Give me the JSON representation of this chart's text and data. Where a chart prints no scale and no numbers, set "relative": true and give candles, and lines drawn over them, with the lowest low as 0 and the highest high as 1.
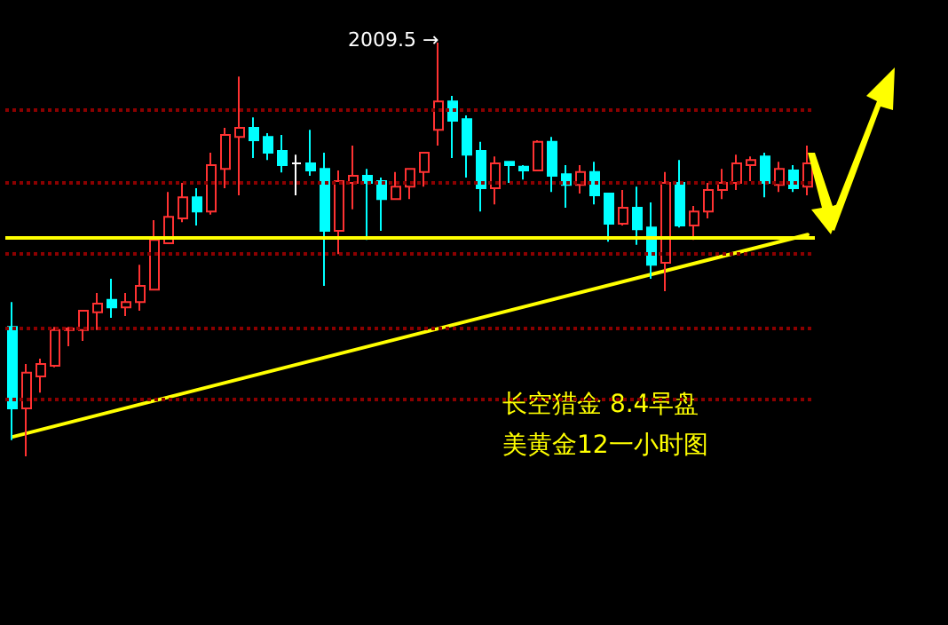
{
  "chart_data": {
    "type": "candlestick",
    "relative": true,
    "categories": [
      null,
      null,
      null,
      null,
      null,
      null,
      null,
      null,
      null,
      null,
      null,
      null,
      null,
      null,
      null,
      null,
      null,
      null,
      null,
      null,
      null,
      null,
      null,
      null,
      null,
      null,
      null,
      null,
      null,
      null,
      null,
      null,
      null,
      null,
      null,
      null,
      null,
      null,
      null,
      null,
      null,
      null,
      null,
      null,
      null,
      null,
      null,
      null,
      null,
      null,
      null,
      null,
      null,
      null,
      null,
      null,
      null
    ],
    "series": [
      {
        "type": "candlestick",
        "ohlc": [
          [
            0.313,
            0.373,
            0.039,
            0.116
          ],
          [
            0.116,
            0.223,
            0,
            0.202
          ],
          [
            0.193,
            0.236,
            0.154,
            0.223
          ],
          [
            0.219,
            0.313,
            0.215,
            0.305
          ],
          [
            0.305,
            0.313,
            0.266,
            0.309
          ],
          [
            0.305,
            0.352,
            0.279,
            0.352
          ],
          [
            0.348,
            0.395,
            0.305,
            0.369
          ],
          [
            0.378,
            0.429,
            0.335,
            0.36
          ],
          [
            0.36,
            0.395,
            0.339,
            0.373
          ],
          [
            0.373,
            0.463,
            0.352,
            0.412
          ],
          [
            0.403,
            0.571,
            0.403,
            0.523
          ],
          [
            0.515,
            0.639,
            0.515,
            0.579
          ],
          [
            0.575,
            0.661,
            0.566,
            0.626
          ],
          [
            0.626,
            0.648,
            0.558,
            0.592
          ],
          [
            0.592,
            0.734,
            0.584,
            0.704
          ],
          [
            0.695,
            0.794,
            0.648,
            0.777
          ],
          [
            0.772,
            0.918,
            0.631,
            0.794
          ],
          [
            0.794,
            0.819,
            0.721,
            0.764
          ],
          [
            0.772,
            0.781,
            0.716,
            0.734
          ],
          [
            0.738,
            0.777,
            0.686,
            0.704
          ],
          [
            0.708,
            0.729,
            0.631,
            0.708
          ],
          [
            0.708,
            0.789,
            0.678,
            0.691
          ],
          [
            0.695,
            0.734,
            0.412,
            0.545
          ],
          [
            0.545,
            0.691,
            0.489,
            0.665
          ],
          [
            0.661,
            0.751,
            0.597,
            0.678
          ],
          [
            0.678,
            0.695,
            0.523,
            0.661
          ],
          [
            0.665,
            0.674,
            0.545,
            0.622
          ],
          [
            0.622,
            0.687,
            0.622,
            0.652
          ],
          [
            0.652,
            0.695,
            0.622,
            0.695
          ],
          [
            0.687,
            0.734,
            0.652,
            0.734
          ],
          [
            0.789,
            1,
            0.751,
            0.858
          ],
          [
            0.858,
            0.871,
            0.721,
            0.811
          ],
          [
            0.815,
            0.824,
            0.674,
            0.729
          ],
          [
            0.738,
            0.76,
            0.592,
            0.648
          ],
          [
            0.648,
            0.725,
            0.609,
            0.708
          ],
          [
            0.712,
            0.712,
            0.661,
            0.704
          ],
          [
            0.7,
            0.704,
            0.669,
            0.691
          ],
          [
            0.691,
            0.764,
            0.691,
            0.76
          ],
          [
            0.76,
            0.772,
            0.639,
            0.678
          ],
          [
            0.682,
            0.704,
            0.601,
            0.656
          ],
          [
            0.656,
            0.704,
            0.635,
            0.687
          ],
          [
            0.687,
            0.712,
            0.609,
            0.631
          ],
          [
            0.635,
            0.635,
            0.519,
            0.562
          ],
          [
            0.562,
            0.644,
            0.558,
            0.601
          ],
          [
            0.601,
            0.652,
            0.511,
            0.549
          ],
          [
            0.553,
            0.614,
            0.429,
            0.463
          ],
          [
            0.468,
            0.687,
            0.399,
            0.661
          ],
          [
            0.661,
            0.716,
            0.553,
            0.558
          ],
          [
            0.558,
            0.605,
            0.523,
            0.592
          ],
          [
            0.592,
            0.661,
            0.575,
            0.644
          ],
          [
            0.644,
            0.695,
            0.622,
            0.661
          ],
          [
            0.661,
            0.729,
            0.644,
            0.708
          ],
          [
            0.704,
            0.725,
            0.665,
            0.716
          ],
          [
            0.725,
            0.734,
            0.626,
            0.661
          ],
          [
            0.656,
            0.712,
            0.639,
            0.695
          ],
          [
            0.691,
            0.704,
            0.639,
            0.648
          ],
          [
            0.652,
            0.751,
            0.631,
            0.708
          ]
        ],
        "colors": [
          "#00ffff",
          "#ff3232",
          "#ff3232",
          "#ff3232",
          "#ff3232",
          "#ff3232",
          "#ff3232",
          "#00ffff",
          "#ff3232",
          "#ff3232",
          "#ff3232",
          "#ff3232",
          "#ff3232",
          "#00ffff",
          "#ff3232",
          "#ff3232",
          "#ff3232",
          "#00ffff",
          "#00ffff",
          "#00ffff",
          "#ffffff",
          "#00ffff",
          "#00ffff",
          "#ff3232",
          "#ff3232",
          "#00ffff",
          "#00ffff",
          "#ff3232",
          "#ff3232",
          "#ff3232",
          "#ff3232",
          "#00ffff",
          "#00ffff",
          "#00ffff",
          "#ff3232",
          "#00ffff",
          "#00ffff",
          "#ff3232",
          "#00ffff",
          "#00ffff",
          "#ff3232",
          "#00ffff",
          "#00ffff",
          "#ff3232",
          "#00ffff",
          "#00ffff",
          "#ff3232",
          "#00ffff",
          "#ff3232",
          "#ff3232",
          "#ff3232",
          "#ff3232",
          "#ff3232",
          "#00ffff",
          "#ff3232",
          "#00ffff",
          "#ff3232"
        ]
      },
      {
        "type": "line",
        "color": "#ffff00",
        "values": [
          0.047,
          null,
          null,
          null,
          null,
          null,
          null,
          null,
          null,
          null,
          null,
          null,
          null,
          null,
          null,
          null,
          null,
          null,
          null,
          null,
          null,
          null,
          null,
          null,
          null,
          null,
          null,
          null,
          null,
          null,
          null,
          null,
          null,
          null,
          null,
          null,
          null,
          null,
          null,
          null,
          null,
          null,
          null,
          null,
          null,
          null,
          null,
          null,
          null,
          null,
          null,
          null,
          null,
          null,
          null,
          null,
          0.536
        ]
      }
    ],
    "ref_lines": [
      {
        "axis": "y",
        "value": 0.532,
        "color": "#ffff00"
      },
      {
        "axis": "y",
        "value": 0.837,
        "color": "#8b0000",
        "line_style": "dotted"
      },
      {
        "axis": "y",
        "value": 0.661,
        "color": "#8b0000",
        "line_style": "dotted"
      },
      {
        "axis": "y",
        "value": 0.489,
        "color": "#8b0000",
        "line_style": "dotted"
      },
      {
        "axis": "y",
        "value": 0.313,
        "color": "#8b0000",
        "line_style": "dotted"
      },
      {
        "axis": "y",
        "value": 0.142,
        "color": "#8b0000",
        "line_style": "dotted"
      }
    ],
    "annotations": [
      "2009.5 →",
      "长空猎金 8.4早盘",
      "美黄金12一小时图"
    ]
  }
}
